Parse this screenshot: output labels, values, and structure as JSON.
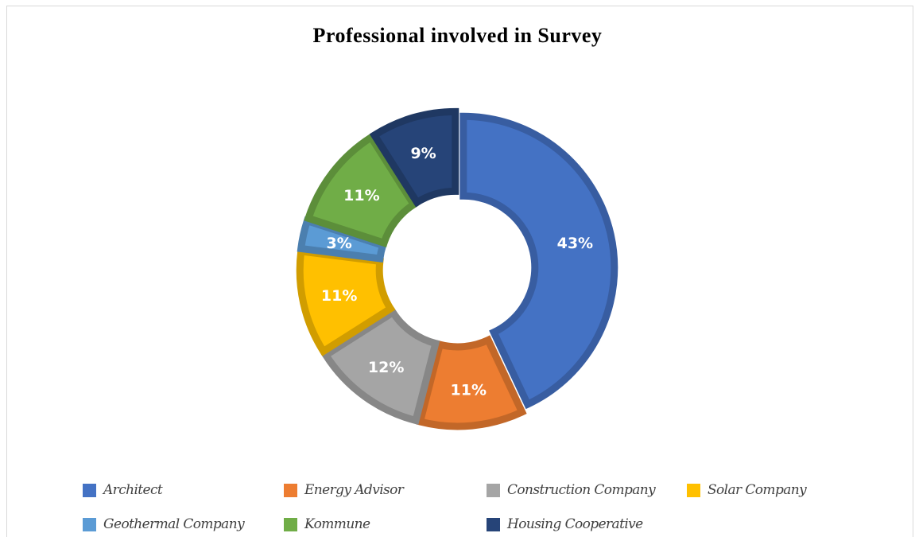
{
  "chart_data": {
    "type": "pie",
    "style": "donut",
    "title": "Professional involved in Survey",
    "slices": [
      {
        "name": "Architect",
        "value": 43,
        "label": "43%",
        "color": "#4472c4"
      },
      {
        "name": "Energy Advisor",
        "value": 11,
        "label": "11%",
        "color": "#ed7d31"
      },
      {
        "name": "Construction Company",
        "value": 12,
        "label": "12%",
        "color": "#a5a5a5"
      },
      {
        "name": "Solar Company",
        "value": 11,
        "label": "11%",
        "color": "#ffc000"
      },
      {
        "name": "Geothermal Company",
        "value": 3,
        "label": "3%",
        "color": "#5b9bd5"
      },
      {
        "name": "Kommune",
        "value": 11,
        "label": "11%",
        "color": "#70ad47"
      },
      {
        "name": "Housing Cooperative",
        "value": 9,
        "label": "9%",
        "color": "#264478"
      }
    ],
    "legend_position": "bottom"
  }
}
